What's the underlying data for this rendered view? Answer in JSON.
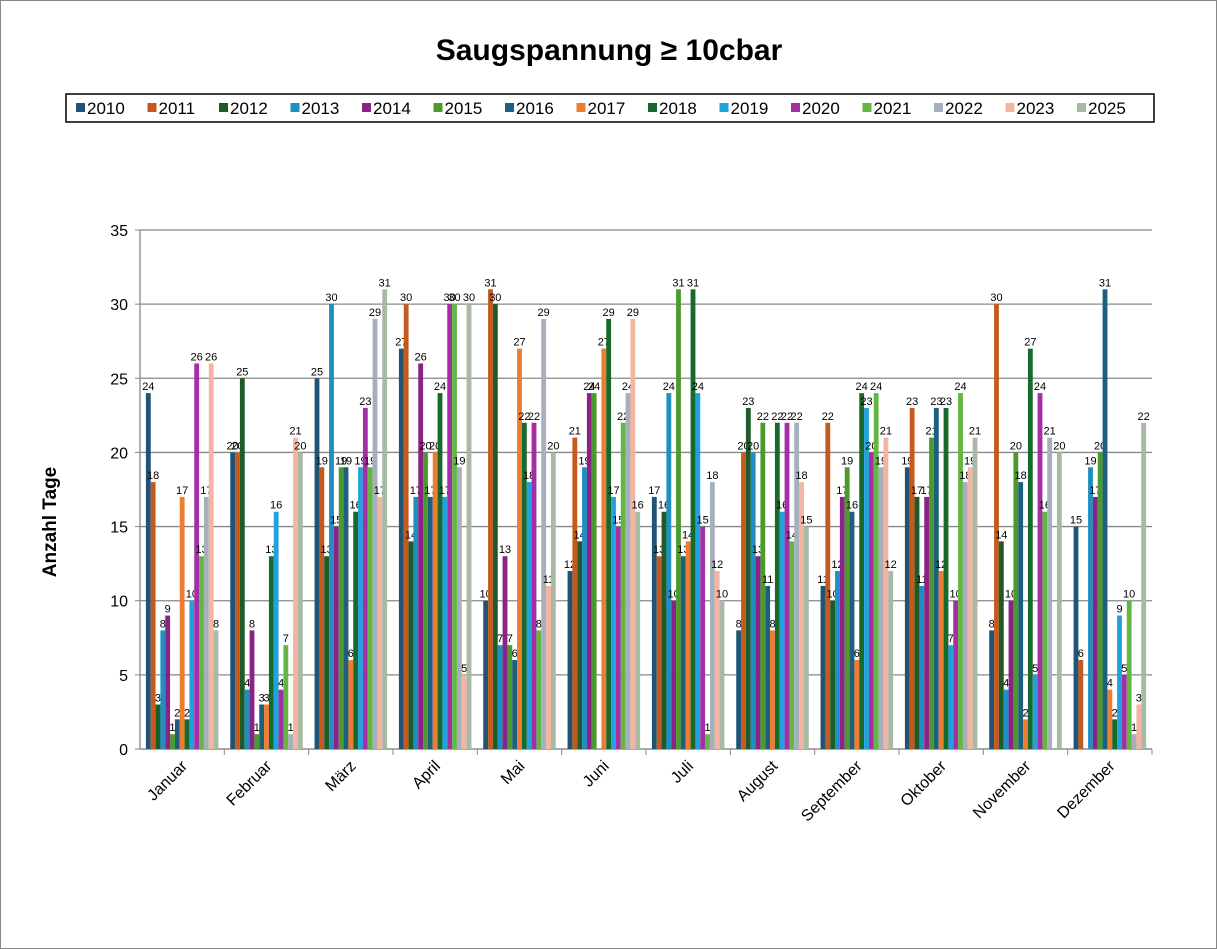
{
  "chart_data": {
    "type": "bar",
    "title": "Saugspannung ≥ 10cbar",
    "y_label": "Anzahl Tage",
    "categories": [
      "Januar",
      "Februar",
      "März",
      "April",
      "Mai",
      "Juni",
      "Juli",
      "August",
      "September",
      "Oktober",
      "November",
      "Dezember"
    ],
    "series": [
      {
        "name": "2010",
        "color": "#1f5476",
        "values": [
          24,
          20,
          25,
          27,
          10,
          12,
          17,
          8,
          11,
          19,
          8,
          15
        ]
      },
      {
        "name": "2011",
        "color": "#c55a1e",
        "values": [
          18,
          20,
          19,
          30,
          31,
          21,
          13,
          20,
          22,
          23,
          30,
          6
        ]
      },
      {
        "name": "2012",
        "color": "#1e5b2a",
        "values": [
          3,
          25,
          13,
          14,
          30,
          14,
          16,
          23,
          10,
          17,
          14,
          null
        ]
      },
      {
        "name": "2013",
        "color": "#1f8ec0",
        "values": [
          8,
          4,
          30,
          17,
          7,
          19,
          24,
          20,
          12,
          11,
          4,
          19
        ]
      },
      {
        "name": "2014",
        "color": "#8a2287",
        "values": [
          9,
          8,
          15,
          26,
          13,
          24,
          10,
          13,
          17,
          17,
          10,
          17
        ]
      },
      {
        "name": "2015",
        "color": "#4c9a2e",
        "values": [
          1,
          1,
          19,
          20,
          7,
          24,
          31,
          22,
          19,
          21,
          20,
          20
        ]
      },
      {
        "name": "2016",
        "color": "#1e5f7e",
        "values": [
          2,
          3,
          19,
          17,
          6,
          null,
          13,
          11,
          16,
          23,
          18,
          31
        ]
      },
      {
        "name": "2017",
        "color": "#ee7d32",
        "values": [
          17,
          3,
          6,
          20,
          27,
          27,
          14,
          8,
          6,
          12,
          2,
          4
        ]
      },
      {
        "name": "2018",
        "color": "#176a2b",
        "values": [
          2,
          13,
          16,
          24,
          22,
          29,
          31,
          22,
          24,
          23,
          27,
          2
        ]
      },
      {
        "name": "2019",
        "color": "#22a2dc",
        "values": [
          10,
          16,
          19,
          17,
          18,
          17,
          24,
          16,
          23,
          7,
          5,
          9
        ]
      },
      {
        "name": "2020",
        "color": "#a42ea6",
        "values": [
          26,
          4,
          23,
          30,
          22,
          15,
          15,
          22,
          20,
          10,
          24,
          5
        ]
      },
      {
        "name": "2021",
        "color": "#62b742",
        "values": [
          13,
          7,
          19,
          30,
          8,
          22,
          1,
          14,
          24,
          24,
          16,
          10
        ]
      },
      {
        "name": "2022",
        "color": "#a6b0bd",
        "values": [
          17,
          1,
          29,
          19,
          29,
          24,
          18,
          22,
          19,
          18,
          21,
          1
        ]
      },
      {
        "name": "2023",
        "color": "#f3b4a2",
        "values": [
          26,
          21,
          17,
          5,
          11,
          29,
          12,
          18,
          21,
          19,
          null,
          3
        ]
      },
      {
        "name": "2025",
        "color": "#a8b9a4",
        "values": [
          8,
          20,
          31,
          30,
          20,
          16,
          10,
          15,
          12,
          21,
          20,
          22
        ]
      }
    ],
    "ylim": [
      0,
      35
    ],
    "yticks": [
      0,
      5,
      10,
      15,
      20,
      25,
      30,
      35
    ],
    "grid": true
  }
}
